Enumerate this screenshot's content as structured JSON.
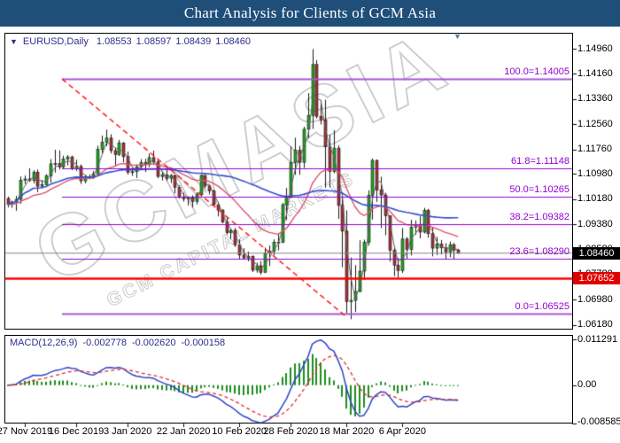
{
  "title_bar": {
    "text": "Chart Analysis for Clients of GCM Asia"
  },
  "chart_header": {
    "dropdown_icon": "▼",
    "symbol": "EURUSD,Daily",
    "open": "1.08553",
    "high": "1.08597",
    "low": "1.08439",
    "close": "1.08460"
  },
  "macd_header": {
    "name": "MACD(12,26,9)",
    "values": [
      "-0.002778",
      "-0.002620",
      "-0.000158"
    ]
  },
  "latest_bar_marker": "▼",
  "watermark": {
    "main": "GCMASIA",
    "sub": "GCM CAPITAL MARKETS"
  },
  "price_axis": {
    "ticks": [
      "1.14960",
      "1.14160",
      "1.13360",
      "1.12560",
      "1.11760",
      "1.10980",
      "1.10180",
      "1.09380",
      "1.08580",
      "1.07780",
      "1.06980",
      "1.06180"
    ],
    "current_price_badge": "1.08460",
    "alert_badge": "1.07652"
  },
  "macd_axis": {
    "ticks": [
      "0.011291",
      "0.00",
      "-0.008585"
    ]
  },
  "x_axis": {
    "labels": [
      "27 Nov 2019",
      "16 Dec 2019",
      "3 Jan 2020",
      "22 Jan 2020",
      "10 Feb 2020",
      "28 Feb 2020",
      "18 Mar 2020",
      "6 Apr 2020"
    ]
  },
  "colors": {
    "title_bg": "#1f4e79",
    "header_text": "#2e2e8e",
    "candle_up": "#1fa51f",
    "candle_down": "#a63238",
    "candle_outline": "#1a1a1a",
    "ma_fast": "#e0506e",
    "ma_slow": "#3650d0",
    "close_line": "#606060",
    "fib_line": "#9400d3",
    "fib_line_outer": "#a855d8",
    "trendline": "#ff1a1a",
    "alert_line": "#ff0000",
    "current_price_line": "#808080",
    "macd_hist": "#1e8c1e",
    "macd_main": "#2c44cc",
    "macd_signal": "#e03030",
    "axis_text": "#000000"
  },
  "chart_data": {
    "type": "candlestick",
    "symbol": "EURUSD",
    "timeframe": "Daily",
    "title": "Chart Analysis for Clients of GCM Asia",
    "ylim": [
      1.0618,
      1.1496
    ],
    "price_ticks": [
      1.1496,
      1.1416,
      1.1336,
      1.1256,
      1.1176,
      1.1098,
      1.1018,
      1.0938,
      1.0858,
      1.0778,
      1.0698,
      1.0618
    ],
    "last_ohlc": [
      1.08553,
      1.08597,
      1.08439,
      1.0846
    ],
    "candles": [
      [
        1.102,
        1.1026,
        1.0992,
        1.1001
      ],
      [
        1.1001,
        1.1013,
        1.099,
        1.1009
      ],
      [
        1.1009,
        1.1028,
        1.0981,
        1.1017
      ],
      [
        1.1017,
        1.109,
        1.1003,
        1.1078
      ],
      [
        1.1078,
        1.1093,
        1.1066,
        1.1082
      ],
      [
        1.1082,
        1.1116,
        1.1073,
        1.1077
      ],
      [
        1.1077,
        1.111,
        1.1068,
        1.1103
      ],
      [
        1.1103,
        1.1112,
        1.104,
        1.1059
      ],
      [
        1.1059,
        1.1079,
        1.1052,
        1.1064
      ],
      [
        1.1064,
        1.1097,
        1.1062,
        1.1092
      ],
      [
        1.1092,
        1.1145,
        1.107,
        1.113
      ],
      [
        1.113,
        1.1175,
        1.1102,
        1.1131
      ],
      [
        1.1131,
        1.1173,
        1.1112,
        1.112
      ],
      [
        1.112,
        1.1156,
        1.1113,
        1.1145
      ],
      [
        1.1145,
        1.1158,
        1.1125,
        1.1152
      ],
      [
        1.1152,
        1.1156,
        1.111,
        1.1114
      ],
      [
        1.1114,
        1.1143,
        1.1107,
        1.1122
      ],
      [
        1.1122,
        1.1128,
        1.1066,
        1.1076
      ],
      [
        1.1076,
        1.1096,
        1.1068,
        1.1089
      ],
      [
        1.1089,
        1.1096,
        1.1081,
        1.1087
      ],
      [
        1.1087,
        1.1107,
        1.1082,
        1.1098
      ],
      [
        1.1098,
        1.1188,
        1.1096,
        1.1176
      ],
      [
        1.1176,
        1.122,
        1.1164,
        1.1199
      ],
      [
        1.1199,
        1.1239,
        1.1186,
        1.1212
      ],
      [
        1.1212,
        1.1224,
        1.1163,
        1.1172
      ],
      [
        1.1172,
        1.1181,
        1.1125,
        1.116
      ],
      [
        1.116,
        1.1206,
        1.1155,
        1.1196
      ],
      [
        1.1196,
        1.1199,
        1.1135,
        1.1153
      ],
      [
        1.1153,
        1.1169,
        1.1096,
        1.1103
      ],
      [
        1.1103,
        1.1118,
        1.1092,
        1.1105
      ],
      [
        1.1105,
        1.1128,
        1.1085,
        1.1121
      ],
      [
        1.1121,
        1.1145,
        1.1113,
        1.1134
      ],
      [
        1.1134,
        1.1146,
        1.1104,
        1.1128
      ],
      [
        1.1128,
        1.1163,
        1.1119,
        1.115
      ],
      [
        1.115,
        1.1172,
        1.1128,
        1.1136
      ],
      [
        1.1136,
        1.1141,
        1.1085,
        1.109
      ],
      [
        1.109,
        1.1103,
        1.1077,
        1.1095
      ],
      [
        1.1095,
        1.1118,
        1.1076,
        1.1084
      ],
      [
        1.1084,
        1.1098,
        1.1069,
        1.1093
      ],
      [
        1.1093,
        1.1096,
        1.1036,
        1.1055
      ],
      [
        1.1055,
        1.1062,
        1.102,
        1.1023
      ],
      [
        1.1023,
        1.1038,
        1.101,
        1.1019
      ],
      [
        1.1019,
        1.1027,
        1.0998,
        1.1022
      ],
      [
        1.1022,
        1.103,
        1.0992,
        1.101
      ],
      [
        1.101,
        1.1039,
        1.1001,
        1.1032
      ],
      [
        1.1032,
        1.1096,
        1.1024,
        1.1093
      ],
      [
        1.1093,
        1.1095,
        1.1053,
        1.106
      ],
      [
        1.106,
        1.1065,
        1.1033,
        1.1044
      ],
      [
        1.1044,
        1.1048,
        1.0995,
        1.1
      ],
      [
        1.1,
        1.1009,
        1.0963,
        1.0983
      ],
      [
        1.0983,
        1.0986,
        1.0941,
        1.0945
      ],
      [
        1.0945,
        1.0958,
        1.0905,
        1.0911
      ],
      [
        1.0911,
        1.0924,
        1.0891,
        1.0917
      ],
      [
        1.0917,
        1.0926,
        1.0865,
        1.0873
      ],
      [
        1.0873,
        1.089,
        1.0827,
        1.084
      ],
      [
        1.084,
        1.0862,
        1.0827,
        1.0831
      ],
      [
        1.0831,
        1.0851,
        1.082,
        1.0836
      ],
      [
        1.0836,
        1.0839,
        1.0786,
        1.0792
      ],
      [
        1.0792,
        1.0816,
        1.0784,
        1.0806
      ],
      [
        1.0806,
        1.0821,
        1.0778,
        1.0785
      ],
      [
        1.0785,
        1.0864,
        1.0783,
        1.0846
      ],
      [
        1.0846,
        1.087,
        1.0805,
        1.0853
      ],
      [
        1.0853,
        1.089,
        1.084,
        1.0881
      ],
      [
        1.0881,
        1.0909,
        1.0855,
        1.088
      ],
      [
        1.088,
        1.1006,
        1.0878,
        1.1
      ],
      [
        1.1,
        1.1053,
        1.0951,
        1.1026
      ],
      [
        1.1026,
        1.1185,
        1.102,
        1.1134
      ],
      [
        1.1134,
        1.1213,
        1.1095,
        1.1173
      ],
      [
        1.1173,
        1.1187,
        1.1095,
        1.1135
      ],
      [
        1.1135,
        1.1248,
        1.1117,
        1.124
      ],
      [
        1.124,
        1.1355,
        1.1212,
        1.1284
      ],
      [
        1.1284,
        1.1495,
        1.1241,
        1.1446
      ],
      [
        1.1446,
        1.146,
        1.1274,
        1.1281
      ],
      [
        1.1281,
        1.1333,
        1.1255,
        1.127
      ],
      [
        1.127,
        1.1334,
        1.1054,
        1.1184
      ],
      [
        1.1184,
        1.1222,
        1.1055,
        1.1106
      ],
      [
        1.1106,
        1.1237,
        1.11,
        1.118
      ],
      [
        1.118,
        1.1189,
        1.0955,
        1.0998
      ],
      [
        1.0998,
        1.104,
        1.0801,
        1.0916
      ],
      [
        1.0916,
        1.0982,
        1.0655,
        1.0692
      ],
      [
        1.0692,
        1.0832,
        1.0636,
        1.0696
      ],
      [
        1.0696,
        1.0808,
        1.0659,
        1.0724
      ],
      [
        1.0724,
        1.0887,
        1.0722,
        1.0789
      ],
      [
        1.0789,
        1.0889,
        1.0761,
        1.0881
      ],
      [
        1.0881,
        1.1046,
        1.087,
        1.103
      ],
      [
        1.103,
        1.1147,
        1.0953,
        1.1141
      ],
      [
        1.1141,
        1.1144,
        1.1009,
        1.1047
      ],
      [
        1.1047,
        1.1089,
        1.0926,
        1.1031
      ],
      [
        1.1031,
        1.1038,
        1.0903,
        1.0965
      ],
      [
        1.0965,
        1.0966,
        1.0819,
        1.0855
      ],
      [
        1.0855,
        1.0864,
        1.0773,
        1.0808
      ],
      [
        1.0808,
        1.083,
        1.0769,
        1.0791
      ],
      [
        1.0791,
        1.0926,
        1.0783,
        1.0891
      ],
      [
        1.0891,
        1.0897,
        1.0829,
        1.0858
      ],
      [
        1.0858,
        1.0952,
        1.0839,
        1.0929
      ],
      [
        1.0929,
        1.095,
        1.0905,
        1.0935
      ],
      [
        1.0935,
        1.0963,
        1.0893,
        1.0913
      ],
      [
        1.0913,
        1.099,
        1.0909,
        1.0982
      ],
      [
        1.0982,
        1.0987,
        1.0895,
        1.0908
      ],
      [
        1.0908,
        1.0928,
        1.0836,
        1.0862
      ],
      [
        1.0862,
        1.0898,
        1.084,
        1.0875
      ],
      [
        1.0875,
        1.0888,
        1.0842,
        1.0863
      ],
      [
        1.0863,
        1.0878,
        1.0826,
        1.085
      ],
      [
        1.085,
        1.0883,
        1.0833,
        1.0873
      ],
      [
        1.0873,
        1.0879,
        1.0827,
        1.0855
      ],
      [
        1.08553,
        1.08597,
        1.08439,
        1.0846
      ]
    ],
    "overlays": {
      "fib_levels": [
        {
          "label": "100.0=1.14005",
          "price": 1.14005,
          "outer": true
        },
        {
          "label": "61.8=1.11148",
          "price": 1.11148,
          "outer": false
        },
        {
          "label": "50.0=1.10265",
          "price": 1.10265,
          "outer": false
        },
        {
          "label": "38.2=1.09382",
          "price": 1.09382,
          "outer": false
        },
        {
          "label": "23.6=1.08290",
          "price": 1.0829,
          "outer": false
        },
        {
          "label": "0.0=1.06525",
          "price": 1.06525,
          "outer": true
        }
      ],
      "fib_start_bar": 12.7,
      "alert_line_price": 1.07652,
      "current_price": 1.0846,
      "trendline": {
        "from_bar": 12.7,
        "from_price": 1.14,
        "to_bar": 79,
        "to_price": 1.0643,
        "style": "dashed"
      },
      "ma_fast_period": 21,
      "ma_slow_period": 50,
      "close_line_period": 3
    },
    "macd": {
      "params": [
        12,
        26,
        9
      ],
      "last_values": [
        -0.002778,
        -0.00262,
        -0.000158
      ],
      "ylim": [
        -0.008585,
        0.011291
      ]
    },
    "x_ticks": [
      {
        "label": "27 Nov 2019",
        "bar": 4
      },
      {
        "label": "16 Dec 2019",
        "bar": 16
      },
      {
        "label": "3 Jan 2020",
        "bar": 28
      },
      {
        "label": "22 Jan 2020",
        "bar": 41
      },
      {
        "label": "10 Feb 2020",
        "bar": 54
      },
      {
        "label": "28 Feb 2020",
        "bar": 66
      },
      {
        "label": "18 Mar 2020",
        "bar": 79
      },
      {
        "label": "6 Apr 2020",
        "bar": 92
      }
    ],
    "legend_position": "none",
    "grid": false
  }
}
